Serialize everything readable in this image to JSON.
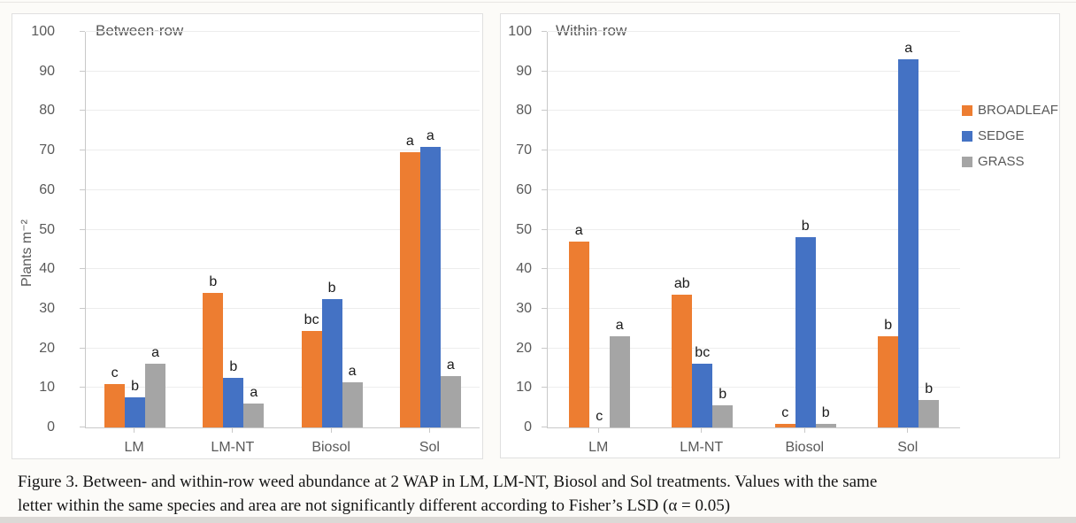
{
  "figure": {
    "caption_lines": [
      "Figure 3. Between- and within-row weed abundance at 2 WAP in LM, LM-NT, Biosol and Sol treatments. Values with the same",
      "letter within the same species and area are not significantly different according to Fisher’s LSD (α = 0.05)"
    ]
  },
  "legend": {
    "position": "right-of-second-panel",
    "items": [
      {
        "label": "BROADLEAF",
        "color": "#ED7D31"
      },
      {
        "label": "SEDGE",
        "color": "#4472C4"
      },
      {
        "label": "GRASS",
        "color": "#A5A5A5"
      }
    ]
  },
  "chart_data": [
    {
      "type": "bar",
      "title": "Between-row",
      "ylabel": "Plants m⁻²",
      "xlabel": "",
      "ylim": [
        0,
        100
      ],
      "ytick_step": 10,
      "grid": true,
      "show_legend": false,
      "categories": [
        "LM",
        "LM-NT",
        "Biosol",
        "Sol"
      ],
      "series": [
        {
          "name": "BROADLEAF",
          "color": "#ED7D31",
          "values": [
            11,
            34,
            24.5,
            69.5
          ],
          "sig_letters": [
            "c",
            "b",
            "bc",
            "a"
          ]
        },
        {
          "name": "SEDGE",
          "color": "#4472C4",
          "values": [
            7.5,
            12.5,
            32.5,
            71
          ],
          "sig_letters": [
            "b",
            "b",
            "b",
            "a"
          ]
        },
        {
          "name": "GRASS",
          "color": "#A5A5A5",
          "values": [
            16,
            6,
            11.5,
            13
          ],
          "sig_letters": [
            "a",
            "a",
            "a",
            "a"
          ]
        }
      ]
    },
    {
      "type": "bar",
      "title": "Within-row",
      "ylabel": "",
      "xlabel": "",
      "ylim": [
        0,
        100
      ],
      "ytick_step": 10,
      "grid": true,
      "show_legend": true,
      "categories": [
        "LM",
        "LM-NT",
        "Biosol",
        "Sol"
      ],
      "series": [
        {
          "name": "BROADLEAF",
          "color": "#ED7D31",
          "values": [
            47,
            33.5,
            1,
            23
          ],
          "sig_letters": [
            "a",
            "ab",
            "c",
            "b"
          ]
        },
        {
          "name": "SEDGE",
          "color": "#4472C4",
          "values": [
            0,
            16,
            48,
            93
          ],
          "sig_letters": [
            "c",
            "bc",
            "b",
            "a"
          ]
        },
        {
          "name": "GRASS",
          "color": "#A5A5A5",
          "values": [
            23,
            5.5,
            1,
            7
          ],
          "sig_letters": [
            "a",
            "b",
            "b",
            "b"
          ]
        }
      ]
    }
  ]
}
